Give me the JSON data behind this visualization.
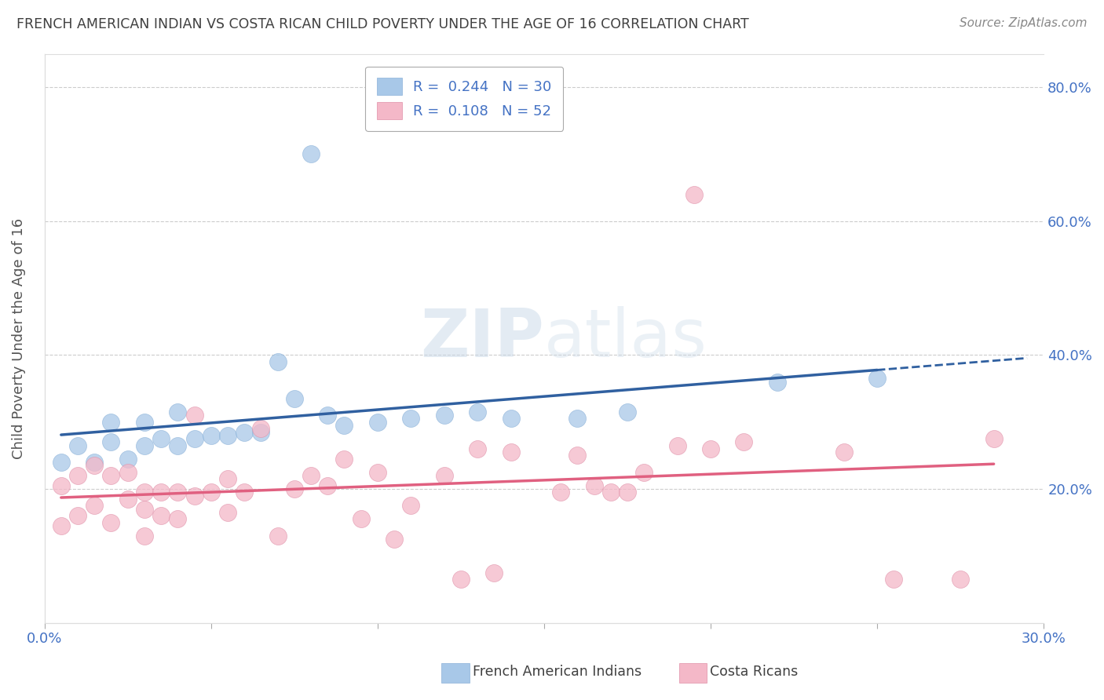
{
  "title": "FRENCH AMERICAN INDIAN VS COSTA RICAN CHILD POVERTY UNDER THE AGE OF 16 CORRELATION CHART",
  "source": "Source: ZipAtlas.com",
  "ylabel": "Child Poverty Under the Age of 16",
  "xlim": [
    0.0,
    0.3
  ],
  "ylim": [
    0.0,
    0.85
  ],
  "xticks": [
    0.0,
    0.05,
    0.1,
    0.15,
    0.2,
    0.25,
    0.3
  ],
  "xticklabels": [
    "0.0%",
    "",
    "",
    "",
    "",
    "",
    "30.0%"
  ],
  "yticks": [
    0.0,
    0.2,
    0.4,
    0.6,
    0.8
  ],
  "yticklabels": [
    "",
    "20.0%",
    "40.0%",
    "60.0%",
    "80.0%"
  ],
  "blue_color": "#a8c8e8",
  "pink_color": "#f4b8c8",
  "blue_line_color": "#3060a0",
  "pink_line_color": "#e06080",
  "axis_label_color": "#4472c4",
  "title_color": "#404040",
  "blue_scatter_x": [
    0.005,
    0.01,
    0.015,
    0.02,
    0.02,
    0.025,
    0.03,
    0.03,
    0.035,
    0.04,
    0.04,
    0.045,
    0.05,
    0.055,
    0.06,
    0.065,
    0.07,
    0.075,
    0.08,
    0.085,
    0.09,
    0.1,
    0.11,
    0.12,
    0.13,
    0.14,
    0.16,
    0.175,
    0.22,
    0.25
  ],
  "blue_scatter_y": [
    0.24,
    0.265,
    0.24,
    0.27,
    0.3,
    0.245,
    0.265,
    0.3,
    0.275,
    0.265,
    0.315,
    0.275,
    0.28,
    0.28,
    0.285,
    0.285,
    0.39,
    0.335,
    0.7,
    0.31,
    0.295,
    0.3,
    0.305,
    0.31,
    0.315,
    0.305,
    0.305,
    0.315,
    0.36,
    0.365
  ],
  "pink_scatter_x": [
    0.005,
    0.005,
    0.01,
    0.01,
    0.015,
    0.015,
    0.02,
    0.02,
    0.025,
    0.025,
    0.03,
    0.03,
    0.03,
    0.035,
    0.035,
    0.04,
    0.04,
    0.045,
    0.045,
    0.05,
    0.055,
    0.055,
    0.06,
    0.065,
    0.07,
    0.075,
    0.08,
    0.085,
    0.09,
    0.095,
    0.1,
    0.105,
    0.11,
    0.12,
    0.125,
    0.13,
    0.135,
    0.14,
    0.155,
    0.16,
    0.165,
    0.17,
    0.175,
    0.18,
    0.19,
    0.195,
    0.2,
    0.21,
    0.24,
    0.255,
    0.275,
    0.285
  ],
  "pink_scatter_y": [
    0.145,
    0.205,
    0.16,
    0.22,
    0.175,
    0.235,
    0.15,
    0.22,
    0.185,
    0.225,
    0.13,
    0.17,
    0.195,
    0.16,
    0.195,
    0.155,
    0.195,
    0.19,
    0.31,
    0.195,
    0.165,
    0.215,
    0.195,
    0.29,
    0.13,
    0.2,
    0.22,
    0.205,
    0.245,
    0.155,
    0.225,
    0.125,
    0.175,
    0.22,
    0.065,
    0.26,
    0.075,
    0.255,
    0.195,
    0.25,
    0.205,
    0.195,
    0.195,
    0.225,
    0.265,
    0.64,
    0.26,
    0.27,
    0.255,
    0.065,
    0.065,
    0.275
  ]
}
